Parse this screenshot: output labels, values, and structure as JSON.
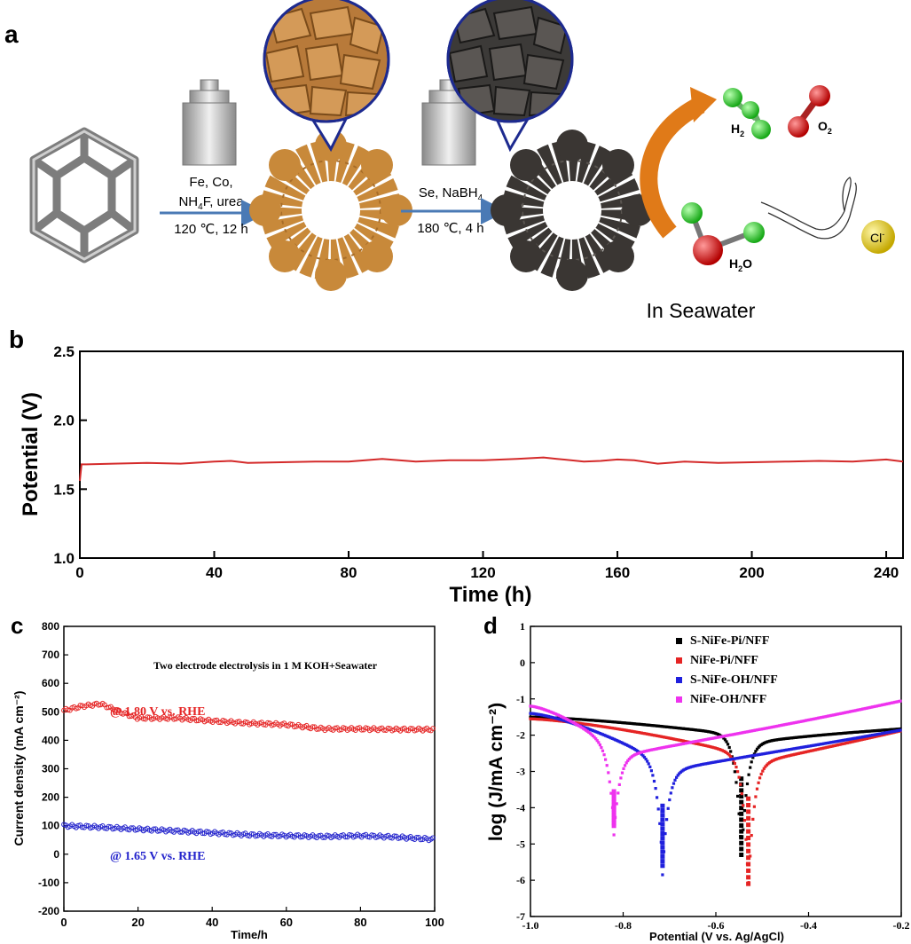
{
  "panel_a": {
    "label": "a",
    "step1_line1": "Fe, Co,",
    "step1_line2_pre": "NH",
    "step1_line2_sub": "4",
    "step1_line2_post": "F, urea",
    "step1_cond": "120 ℃, 12 h",
    "step2_line1_pre": "Se, NaBH",
    "step2_line1_sub": "4",
    "step2_cond": "180 ℃, 4 h",
    "h2_main": "H",
    "h2_sub": "2",
    "o2_main": "O",
    "o2_sub": "2",
    "h2o_main": "H",
    "h2o_sub": "2",
    "h2o_end": "O",
    "cl_main": "Cl",
    "cl_sup": "-",
    "caption": "In Seawater",
    "colors": {
      "arrow": "#4a7ab5",
      "reaction_arrow": "#e07a18",
      "precursor": "#c8893a",
      "selenide": "#3a3633",
      "h_atom": "#22cc22",
      "o_atom": "#dd1111",
      "cl_atom": "#e6d21c"
    }
  },
  "chart_data": [
    {
      "id": "b",
      "label": "b",
      "type": "line",
      "xlabel": "Time (h)",
      "ylabel": "Potential (V)",
      "xlim": [
        0,
        245
      ],
      "ylim": [
        1.0,
        2.5
      ],
      "xticks": [
        0,
        40,
        80,
        120,
        160,
        200,
        240
      ],
      "yticks": [
        1.0,
        1.5,
        2.0,
        2.5
      ],
      "ytick_labels": [
        "1.0",
        "1.5",
        "2.0",
        "2.5"
      ],
      "series": [
        {
          "color": "#d42a2a",
          "x": [
            0,
            0.5,
            2,
            10,
            20,
            30,
            40,
            45,
            50,
            60,
            70,
            80,
            85,
            90,
            95,
            100,
            110,
            120,
            130,
            138,
            142,
            150,
            155,
            160,
            165,
            172,
            180,
            190,
            200,
            210,
            220,
            230,
            240,
            245
          ],
          "y": [
            1.56,
            1.68,
            1.68,
            1.685,
            1.69,
            1.685,
            1.7,
            1.705,
            1.69,
            1.695,
            1.7,
            1.7,
            1.71,
            1.72,
            1.71,
            1.7,
            1.71,
            1.71,
            1.72,
            1.73,
            1.72,
            1.7,
            1.705,
            1.715,
            1.71,
            1.685,
            1.7,
            1.69,
            1.695,
            1.7,
            1.705,
            1.7,
            1.715,
            1.7
          ]
        }
      ]
    },
    {
      "id": "c",
      "label": "c",
      "type": "scatter",
      "xlabel": "Time/h",
      "ylabel": "Current density (mA cm⁻²)",
      "xlim": [
        0,
        100
      ],
      "ylim": [
        -200,
        800
      ],
      "xticks": [
        0,
        20,
        40,
        60,
        80,
        100
      ],
      "yticks": [
        -200,
        -100,
        0,
        100,
        200,
        300,
        400,
        500,
        600,
        700,
        800
      ],
      "annotation": "Two electrode electrolysis in 1 M KOH+Seawater",
      "series": [
        {
          "name": "@ 1.80 V vs. RHE",
          "color": "#e52424",
          "x": [
            0,
            5,
            10,
            15,
            20,
            30,
            40,
            50,
            60,
            70,
            80,
            90,
            100
          ],
          "y": [
            505,
            520,
            528,
            500,
            478,
            478,
            468,
            460,
            455,
            440,
            440,
            438,
            438
          ]
        },
        {
          "name": "@ 1.65 V vs. RHE",
          "color": "#2323cc",
          "x": [
            0,
            10,
            20,
            30,
            40,
            50,
            60,
            70,
            80,
            90,
            100
          ],
          "y": [
            100,
            95,
            88,
            82,
            75,
            68,
            65,
            62,
            65,
            60,
            52
          ]
        }
      ]
    },
    {
      "id": "d",
      "label": "d",
      "type": "scatter",
      "xlabel": "Potential (V vs. Ag/AgCl)",
      "ylabel": "log (J/mA cm⁻²)",
      "xlim": [
        -1.0,
        -0.2
      ],
      "ylim": [
        -7,
        1
      ],
      "xticks": [
        -1.0,
        -0.8,
        -0.6,
        -0.4,
        -0.2
      ],
      "xtick_labels": [
        "-1.0",
        "-0.8",
        "-0.6",
        "-0.4",
        "-0.2"
      ],
      "yticks": [
        -7,
        -6,
        -5,
        -4,
        -3,
        -2,
        -1,
        0,
        1
      ],
      "series": [
        {
          "name": "S-NiFe-Pi/NFF",
          "color": "#000000",
          "corr_x": -0.545,
          "corr_y": -5.3,
          "left_y": -1.5,
          "mid_y": -2.0,
          "right_y": -1.8
        },
        {
          "name": "NiFe-Pi/NFF",
          "color": "#e52424",
          "corr_x": -0.53,
          "corr_y": -6.1,
          "left_y": -1.55,
          "mid_y": -2.55,
          "right_y": -1.85
        },
        {
          "name": "S-NiFe-OH/NFF",
          "color": "#2020dd",
          "corr_x": -0.715,
          "corr_y": -5.6,
          "left_y": -1.4,
          "mid_y": -2.75,
          "right_y": -1.85
        },
        {
          "name": "NiFe-OH/NFF",
          "color": "#ee33ee",
          "corr_x": -0.82,
          "corr_y": -4.5,
          "left_y": -1.2,
          "mid_y": -2.35,
          "right_y": -1.05
        }
      ]
    }
  ]
}
